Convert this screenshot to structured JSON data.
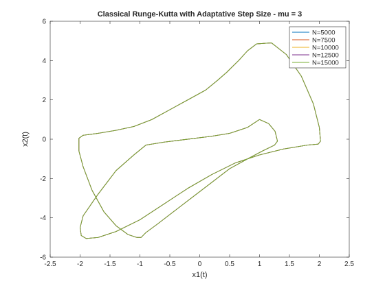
{
  "chart_data": {
    "type": "line",
    "title": "Classical Runge-Kutta with Adaptative Step Size - mu = 3",
    "xlabel": "x1(t)",
    "ylabel": "x2(t)",
    "xlim": [
      -2.5,
      2.5
    ],
    "ylim": [
      -6,
      6
    ],
    "xticks": [
      -2.5,
      -2,
      -1.5,
      -1,
      -0.5,
      0,
      0.5,
      1,
      1.5,
      2,
      2.5
    ],
    "yticks": [
      -6,
      -4,
      -2,
      0,
      2,
      4,
      6
    ],
    "xtick_labels": [
      "-2.5",
      "-2",
      "-1.5",
      "-1",
      "-0.5",
      "0",
      "0.5",
      "1",
      "1.5",
      "2",
      "2.5"
    ],
    "ytick_labels": [
      "-6",
      "-4",
      "-2",
      "0",
      "2",
      "4",
      "6"
    ],
    "grid": false,
    "legend_position": "top-right",
    "series": [
      {
        "name": "N=5000",
        "color": "#0072BD"
      },
      {
        "name": "N=7500",
        "color": "#D95319"
      },
      {
        "name": "N=10000",
        "color": "#EDB120"
      },
      {
        "name": "N=12500",
        "color": "#7E2F8E"
      },
      {
        "name": "N=15000",
        "color": "#77AC30"
      }
    ],
    "trajectory": {
      "x": [
        1.0,
        1.15,
        1.26,
        1.3,
        1.25,
        1.05,
        0.8,
        0.5,
        0.2,
        -0.1,
        -0.4,
        -0.7,
        -0.9,
        -0.98,
        -1.05,
        -1.2,
        -1.4,
        -1.6,
        -1.8,
        -1.95,
        -2.02,
        -2.02,
        -1.95,
        -1.7,
        -1.4,
        -1.1,
        -0.8,
        -0.5,
        -0.2,
        0.1,
        0.3,
        0.45,
        0.55,
        0.65,
        0.8,
        0.95,
        1.2,
        1.45,
        1.7,
        1.9,
        2.0,
        2.02,
        1.98,
        1.8,
        1.4,
        1.0,
        0.6,
        0.2,
        -0.2,
        -0.6,
        -1.0,
        -1.4,
        -1.7,
        -1.9,
        -1.98,
        -2.0,
        -1.95,
        -1.7,
        -1.4,
        -1.1,
        -0.9,
        -0.6,
        -0.2,
        0.2,
        0.5,
        0.8,
        1.0
      ],
      "y": [
        1.0,
        0.8,
        0.4,
        -0.1,
        -0.3,
        -0.6,
        -1.0,
        -1.5,
        -2.2,
        -2.9,
        -3.6,
        -4.3,
        -4.75,
        -5.0,
        -5.0,
        -4.85,
        -4.4,
        -3.7,
        -2.6,
        -1.4,
        -0.6,
        0.05,
        0.2,
        0.3,
        0.45,
        0.65,
        1.0,
        1.5,
        2.0,
        2.5,
        3.0,
        3.4,
        3.7,
        4.0,
        4.5,
        4.85,
        4.9,
        4.3,
        3.2,
        1.8,
        0.6,
        -0.1,
        -0.25,
        -0.3,
        -0.5,
        -0.8,
        -1.2,
        -1.8,
        -2.5,
        -3.3,
        -4.1,
        -4.7,
        -5.0,
        -5.05,
        -4.9,
        -4.5,
        -3.9,
        -2.8,
        -1.6,
        -0.8,
        -0.3,
        -0.15,
        0.0,
        0.15,
        0.3,
        0.6,
        1.0
      ]
    }
  }
}
